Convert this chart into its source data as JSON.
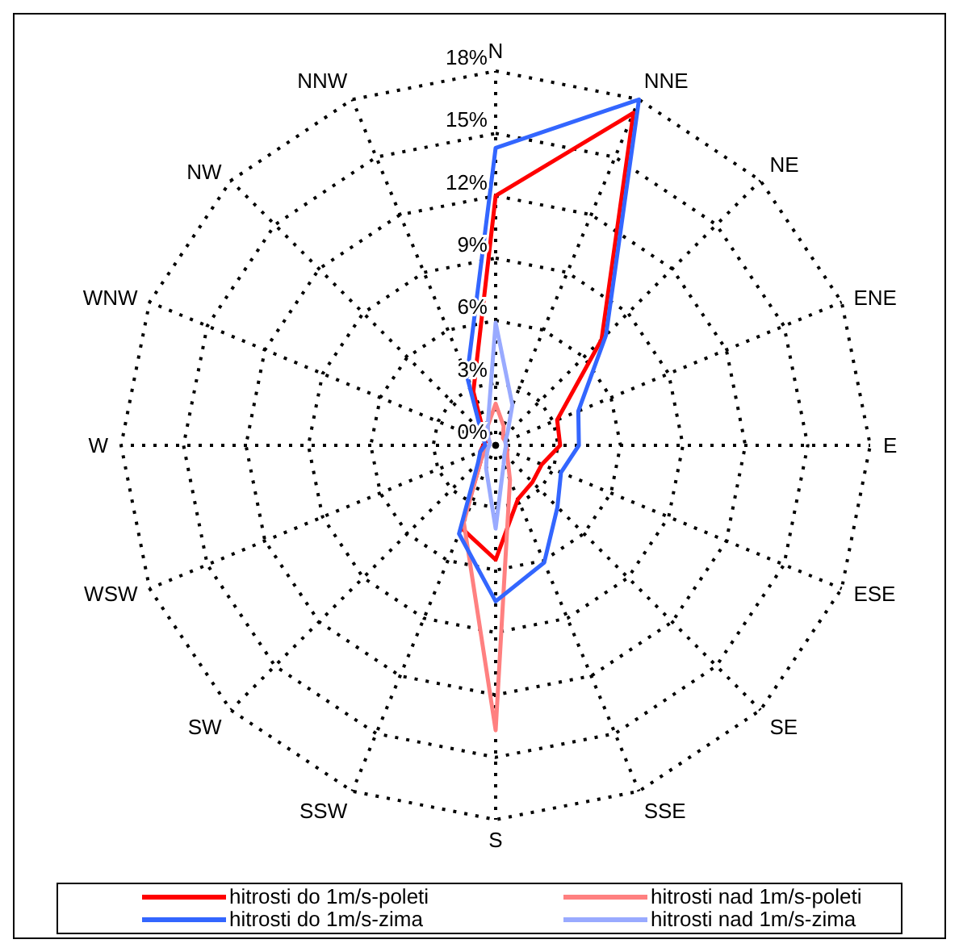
{
  "chart_data": {
    "type": "radar",
    "categories": [
      "N",
      "NNE",
      "NE",
      "ENE",
      "E",
      "ESE",
      "SE",
      "SSE",
      "S",
      "SSW",
      "SW",
      "WSW",
      "W",
      "WNW",
      "NW",
      "NNW"
    ],
    "series": [
      {
        "name": "hitrosti do 1m/s-poleti",
        "color": "#ff0000",
        "values": [
          12,
          17.3,
          7.2,
          3.2,
          3.1,
          2.4,
          2.5,
          2.8,
          5.5,
          4.3,
          1,
          0.8,
          0.6,
          0.5,
          0.8,
          2.8
        ]
      },
      {
        "name": "hitrosti nad 1m/s-poleti",
        "color": "#ff8080",
        "values": [
          2,
          1,
          0.5,
          0.5,
          0.5,
          0.6,
          0.8,
          1.8,
          13.7,
          4,
          1,
          0.5,
          0.3,
          0.3,
          0.5,
          1
        ]
      },
      {
        "name": "hitrosti do 1m/s-zima",
        "color": "#3366ff",
        "values": [
          14.3,
          18,
          7.5,
          4.3,
          4,
          3.4,
          4.2,
          6.1,
          7.5,
          4.6,
          1.2,
          0.8,
          0.5,
          0.6,
          1,
          3.6
        ]
      },
      {
        "name": "hitrosti nad 1m/s-zima",
        "color": "#99aaff",
        "values": [
          5.9,
          2.1,
          0.8,
          0.5,
          0.5,
          0.5,
          0.6,
          1,
          4,
          1.2,
          0.6,
          0.4,
          0.3,
          0.3,
          0.5,
          1
        ]
      }
    ],
    "ylim": [
      0,
      18
    ],
    "yticks": [
      {
        "value": 0,
        "label": "0%"
      },
      {
        "value": 3,
        "label": "3%"
      },
      {
        "value": 6,
        "label": "6%"
      },
      {
        "value": 9,
        "label": "9%"
      },
      {
        "value": 12,
        "label": "12%"
      },
      {
        "value": 15,
        "label": "15%"
      },
      {
        "value": 18,
        "label": "18%"
      }
    ],
    "grid": true,
    "legend": "bottom",
    "marker": "none",
    "line_style": "solid"
  }
}
